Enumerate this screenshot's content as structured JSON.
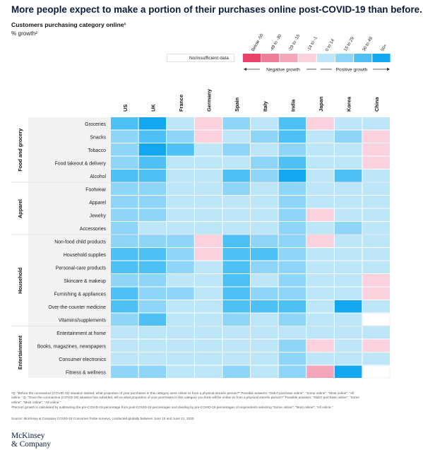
{
  "title": "More people expect to make a portion of their purchases online post-COVID-19 than before.",
  "subtitle": "Customers purchasing category online¹",
  "unit": "% growth²",
  "legend": {
    "na_label": "No/insufficient data",
    "negative_label": "Negative growth",
    "positive_label": "Positive growth",
    "bins": [
      {
        "label": "Below -50",
        "color": "#e8416a"
      },
      {
        "label": "-49 to -30",
        "color": "#ef7d98"
      },
      {
        "label": "-29 to -15",
        "color": "#f4a6bb"
      },
      {
        "label": "-14 to -1",
        "color": "#fad1dd"
      },
      {
        "label": "0 to 14",
        "color": "#bde6f8"
      },
      {
        "label": "15 to 29",
        "color": "#8fd5f7"
      },
      {
        "label": "30 to 49",
        "color": "#4fc0f5"
      },
      {
        "label": "50+",
        "color": "#12a7ee"
      }
    ]
  },
  "chart_data": {
    "type": "heatmap",
    "title": "More people expect to make a portion of their purchases online post-COVID-19 than before.",
    "subtitle": "Customers purchasing category online¹",
    "unit": "% growth²",
    "columns": [
      "US",
      "UK",
      "France",
      "Germany",
      "Spain",
      "Italy",
      "India",
      "Japan",
      "Korea",
      "China"
    ],
    "groups": [
      {
        "name": "Food and grocery",
        "rows": [
          "Groceries",
          "Snacks",
          "Tobacco",
          "Food takeout & delivery",
          "Alcohol"
        ]
      },
      {
        "name": "Apparel",
        "rows": [
          "Footwear",
          "Apparel",
          "Jewelry",
          "Accessories"
        ]
      },
      {
        "name": "Household",
        "rows": [
          "Non-food child products",
          "Household supplies",
          "Personal-care products",
          "Skincare & makeup",
          "Furnishing & appliances",
          "Over-the-counter medicine",
          "Vitamins/supplements"
        ]
      },
      {
        "name": "Entertainment",
        "rows": [
          "Entertainment at home",
          "Books, magazines, newspapers",
          "Consumer electronics",
          "Fitness & wellness"
        ]
      }
    ],
    "bin_labels": [
      "Below -50",
      "-49 to -30",
      "-29 to -15",
      "-14 to -1",
      "0 to 14",
      "15 to 29",
      "30 to 49",
      "50+"
    ],
    "na_label": "No/insufficient data",
    "values": [
      [
        "30 to 49",
        "50+",
        "0 to 14",
        "-14 to -1",
        "15 to 29",
        "0 to 14",
        "30 to 49",
        "-14 to -1",
        "0 to 14",
        "0 to 14"
      ],
      [
        "15 to 29",
        "30 to 49",
        "15 to 29",
        "-14 to -1",
        "0 to 14",
        "15 to 29",
        "30 to 49",
        "0 to 14",
        "15 to 29",
        "-14 to -1"
      ],
      [
        "15 to 29",
        "50+",
        "30 to 49",
        "0 to 14",
        "15 to 29",
        "0 to 14",
        "15 to 29",
        "0 to 14",
        "0 to 14",
        "-14 to -1"
      ],
      [
        "15 to 29",
        "30 to 49",
        "0 to 14",
        "0 to 14",
        "0 to 14",
        "15 to 29",
        "30 to 49",
        "0 to 14",
        "0 to 14",
        "-14 to -1"
      ],
      [
        "30 to 49",
        "30 to 49",
        "0 to 14",
        "0 to 14",
        "30 to 49",
        "15 to 29",
        "50+",
        "0 to 14",
        "30 to 49",
        "0 to 14"
      ],
      [
        "15 to 29",
        "15 to 29",
        "0 to 14",
        "0 to 14",
        "15 to 29",
        "0 to 14",
        "15 to 29",
        "0 to 14",
        "0 to 14",
        "0 to 14"
      ],
      [
        "15 to 29",
        "15 to 29",
        "0 to 14",
        "0 to 14",
        "0 to 14",
        "0 to 14",
        "15 to 29",
        "0 to 14",
        "0 to 14",
        "0 to 14"
      ],
      [
        "15 to 29",
        "15 to 29",
        "0 to 14",
        "0 to 14",
        "0 to 14",
        "0 to 14",
        "15 to 29",
        "-14 to -1",
        "0 to 14",
        "0 to 14"
      ],
      [
        "15 to 29",
        "0 to 14",
        "0 to 14",
        "0 to 14",
        "0 to 14",
        "0 to 14",
        "15 to 29",
        "0 to 14",
        "15 to 29",
        "0 to 14"
      ],
      [
        "15 to 29",
        "15 to 29",
        "15 to 29",
        "-14 to -1",
        "30 to 49",
        "15 to 29",
        "15 to 29",
        "-14 to -1",
        "0 to 14",
        "0 to 14"
      ],
      [
        "30 to 49",
        "30 to 49",
        "15 to 29",
        "-14 to -1",
        "30 to 49",
        "30 to 49",
        "15 to 29",
        "0 to 14",
        "0 to 14",
        "0 to 14"
      ],
      [
        "30 to 49",
        "30 to 49",
        "15 to 29",
        "0 to 14",
        "30 to 49",
        "15 to 29",
        "15 to 29",
        "0 to 14",
        "0 to 14",
        "0 to 14"
      ],
      [
        "15 to 29",
        "15 to 29",
        "0 to 14",
        "0 to 14",
        "30 to 49",
        "0 to 14",
        "15 to 29",
        "0 to 14",
        "0 to 14",
        "-14 to -1"
      ],
      [
        "30 to 49",
        "15 to 29",
        "15 to 29",
        "0 to 14",
        "30 to 49",
        "15 to 29",
        "15 to 29",
        "0 to 14",
        "0 to 14",
        "-14 to -1"
      ],
      [
        "30 to 49",
        "15 to 29",
        "0 to 14",
        "0 to 14",
        "30 to 49",
        "30 to 49",
        "30 to 49",
        "0 to 14",
        "50+",
        "0 to 14"
      ],
      [
        "15 to 29",
        "30 to 49",
        "0 to 14",
        "0 to 14",
        "15 to 29",
        "0 to 14",
        "15 to 29",
        "0 to 14",
        "0 to 14",
        null
      ],
      [
        "0 to 14",
        "0 to 14",
        "0 to 14",
        "0 to 14",
        "0 to 14",
        "0 to 14",
        "0 to 14",
        "0 to 14",
        "0 to 14",
        "0 to 14"
      ],
      [
        "0 to 14",
        "0 to 14",
        "0 to 14",
        "0 to 14",
        "0 to 14",
        "0 to 14",
        "15 to 29",
        "-14 to -1",
        "0 to 14",
        "-14 to -1"
      ],
      [
        "0 to 14",
        "0 to 14",
        "0 to 14",
        "0 to 14",
        "0 to 14",
        "0 to 14",
        "15 to 29",
        "0 to 14",
        "0 to 14",
        "0 to 14"
      ],
      [
        "15 to 29",
        "15 to 29",
        "0 to 14",
        "0 to 14",
        "15 to 29",
        "0 to 14",
        "15 to 29",
        "-29 to -15",
        "50+",
        null
      ]
    ]
  },
  "footnotes": {
    "f1": "¹Q: \"Before the coronavirus (COVID-19) situation started, what proportion of your purchases in this category were online vs from a physical store/in person?\" Possible answers: \"Didn't purchase online\"; \"Some online\"; \"Most online\"; \"All online.\" Q: \"Once the coronavirus (COVID-19) situation has subsided, tell us what proportion of your purchases in this category you think will be online vs from a physical store/in person?\" Possible answers: \"Didn't purchase online\"; \"Some online\"; \"Most online\"; \"All online.\"",
    "f2": "²Percent growth is calculated by subtracting the pre-COVID-19 percentage from post-COVID-19 percentages and dividing by pre-COVID-19 percentages of respondents selecting \"Some online\"; \"Most online\"; \"All online.\"",
    "source": "Source: McKinsey & Company COVID-19 Consumer Pulse surveys, conducted globally between June 15 and June 21, 2020"
  },
  "brand": {
    "line1": "McKinsey",
    "line2": "& Company"
  }
}
